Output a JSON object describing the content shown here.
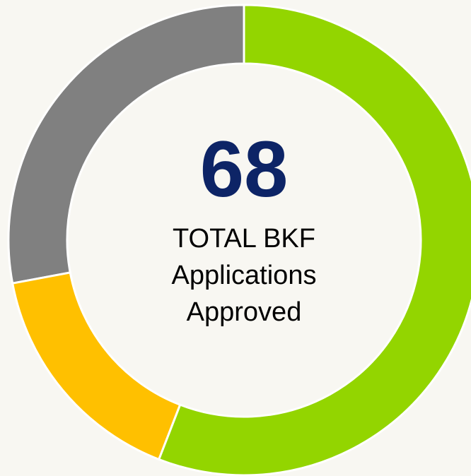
{
  "chart_data": {
    "type": "donut",
    "values": [
      38,
      11,
      19
    ],
    "colors": [
      "#93d500",
      "#ffc000",
      "#808080"
    ],
    "center_value": "68",
    "center_label": [
      "TOTAL BKF",
      "Applications",
      "Approved"
    ]
  }
}
